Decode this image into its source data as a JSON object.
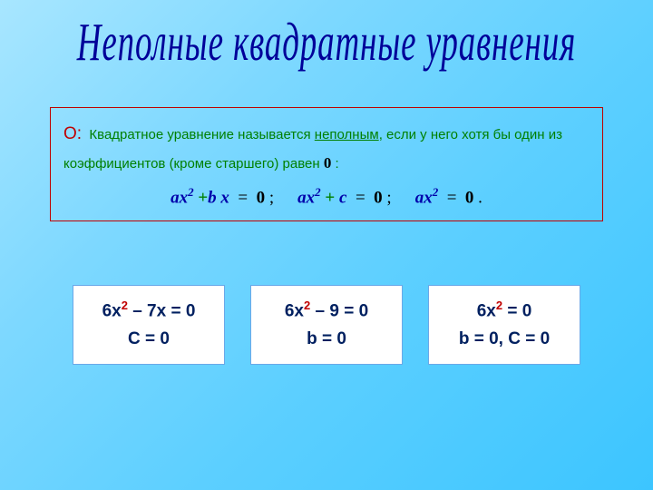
{
  "title": "Неполные  квадратные уравнения",
  "definition": {
    "prefix": "О:",
    "text_part1": "Квадратное уравнение называется ",
    "underlined": "неполным",
    "text_part2": ", если у него хотя бы один из коэффициентов (кроме старшего) равен ",
    "zero": "0",
    "text_part3": " :"
  },
  "formulas": {
    "f1": {
      "a": "a",
      "x": "x",
      "exp": "2",
      "plus": "+",
      "b": "b",
      "x2": "x",
      "eq": "=",
      "zero": "0",
      "semi": ";"
    },
    "f2": {
      "a": "a",
      "x": "x",
      "exp": "2",
      "plus": "+",
      "c": "c",
      "eq": "=",
      "zero": "0",
      "semi": ";"
    },
    "f3": {
      "a": "a",
      "x": "x",
      "exp": "2",
      "eq": "=",
      "zero": "0",
      "dot": "."
    }
  },
  "examples": {
    "ex1": {
      "pre": "6x",
      "sup": "2",
      "post": " – 7x = 0",
      "sub": "C = 0"
    },
    "ex2": {
      "pre": "6x",
      "sup": "2",
      "post": " – 9 = 0",
      "sub": "b = 0"
    },
    "ex3": {
      "pre": "6x",
      "sup": "2",
      "post": " = 0",
      "sub": "b = 0, C = 0"
    }
  },
  "colors": {
    "title": "#000099",
    "def_border": "#c00000",
    "def_text": "#008000",
    "var": "#0000aa",
    "example_text": "#002060",
    "example_sup": "#c00000",
    "box_border": "#6aa8e8"
  }
}
